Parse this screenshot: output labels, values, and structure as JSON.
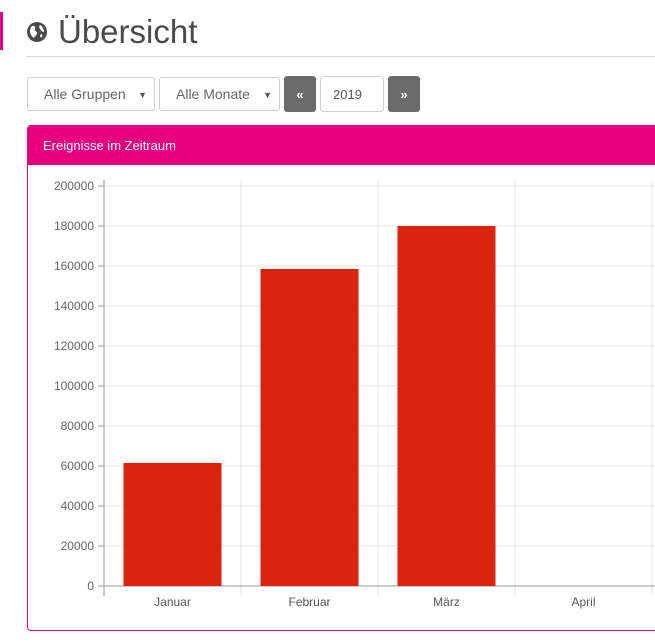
{
  "header": {
    "title": "Übersicht"
  },
  "filters": {
    "group_select": "Alle Gruppen",
    "month_select": "Alle Monate",
    "prev_label": "«",
    "next_label": "»",
    "year_value": "2019"
  },
  "panel": {
    "title": "Ereignisse im Zeitraum"
  },
  "colors": {
    "accent": "#e6007e",
    "bar": "#d9230f",
    "nav_button": "#6b6b6b"
  },
  "chart_data": {
    "type": "bar",
    "title": "Ereignisse im Zeitraum",
    "categories": [
      "Januar",
      "Februar",
      "März",
      "April"
    ],
    "values": [
      61500,
      158500,
      180000,
      0
    ],
    "ylim": [
      0,
      200000
    ],
    "yticks": [
      0,
      20000,
      40000,
      60000,
      80000,
      100000,
      120000,
      140000,
      160000,
      180000,
      200000
    ],
    "xlabel": "",
    "ylabel": "",
    "grid": true
  }
}
